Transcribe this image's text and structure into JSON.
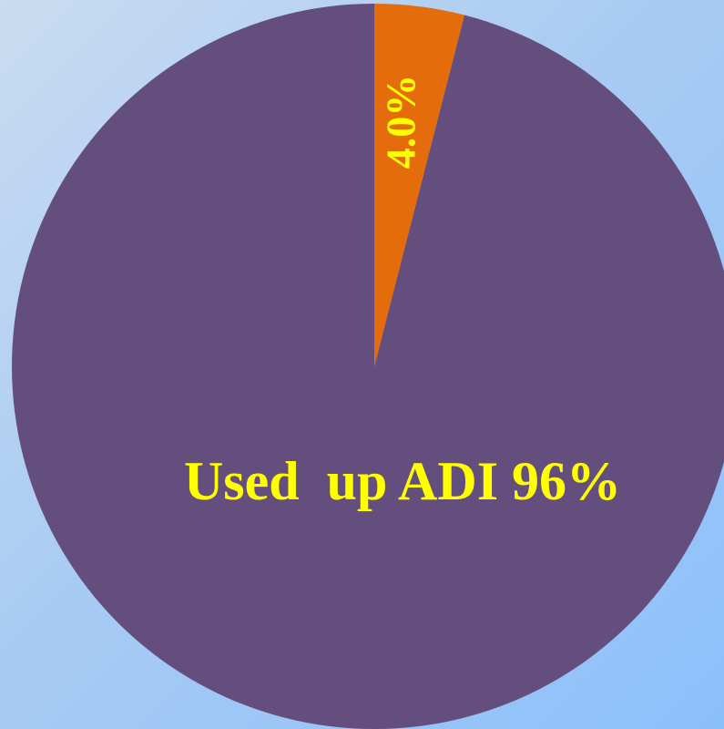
{
  "chart_data": {
    "type": "pie",
    "start_angle_deg": 0,
    "direction": "counterclockwise",
    "slices": [
      {
        "name": "Used up ADI",
        "value": 96,
        "label": "Used  up ADI 96%",
        "color": "#644e7e"
      },
      {
        "name": "",
        "value": 4.0,
        "label": "4.0%",
        "color": "#e46c0a"
      }
    ],
    "label_color": "#ffff00",
    "background_color": "#a9cbf3",
    "legend": "none"
  }
}
